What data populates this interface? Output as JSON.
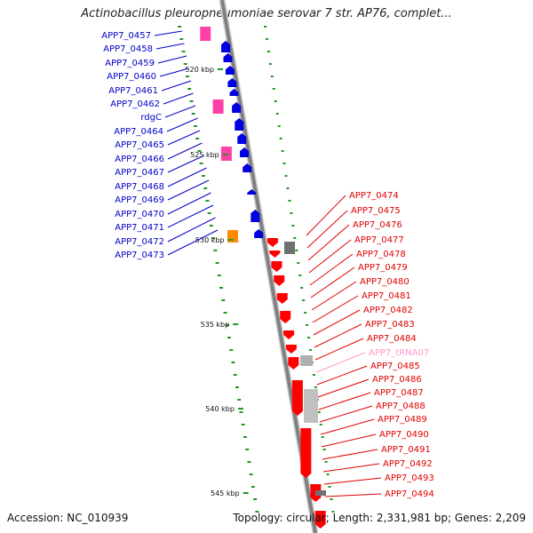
{
  "title": "Actinobacillus pleuropneumoniae serovar 7 str. AP76, complet...",
  "accession": "Accession: NC_010939",
  "topology": "Topology: circular; Length: 2,331,981 bp; Genes: 2,209",
  "colors": {
    "backbone": "#808080",
    "forward_gene": "#0000e0",
    "reverse_gene": "#ff0000",
    "pseudo_gene": "#ff3fa8",
    "trna": "#ff99cc",
    "other_gene": "#ff8c00",
    "gc_skew": "#229922",
    "forward_label": "#0000c8",
    "reverse_label": "#e00000"
  },
  "ticks": [
    "520 kbp",
    "525 kbp",
    "530 kbp",
    "535 kbp",
    "540 kbp",
    "545 kbp"
  ],
  "left_labels": [
    "APP7_0457",
    "APP7_0458",
    "APP7_0459",
    "APP7_0460",
    "APP7_0461",
    "APP7_0462",
    "rdgC",
    "APP7_0464",
    "APP7_0465",
    "APP7_0466",
    "APP7_0467",
    "APP7_0468",
    "APP7_0469",
    "APP7_0470",
    "APP7_0471",
    "APP7_0472",
    "APP7_0473"
  ],
  "right_labels": [
    "APP7_0474",
    "APP7_0475",
    "APP7_0476",
    "APP7_0477",
    "APP7_0478",
    "APP7_0479",
    "APP7_0480",
    "APP7_0481",
    "APP7_0482",
    "APP7_0483",
    "APP7_0484",
    "APP7_tRNA07",
    "APP7_0485",
    "APP7_0486",
    "APP7_0487",
    "APP7_0488",
    "APP7_0489",
    "APP7_0490",
    "APP7_0491",
    "APP7_0492",
    "APP7_0493",
    "APP7_0494"
  ]
}
